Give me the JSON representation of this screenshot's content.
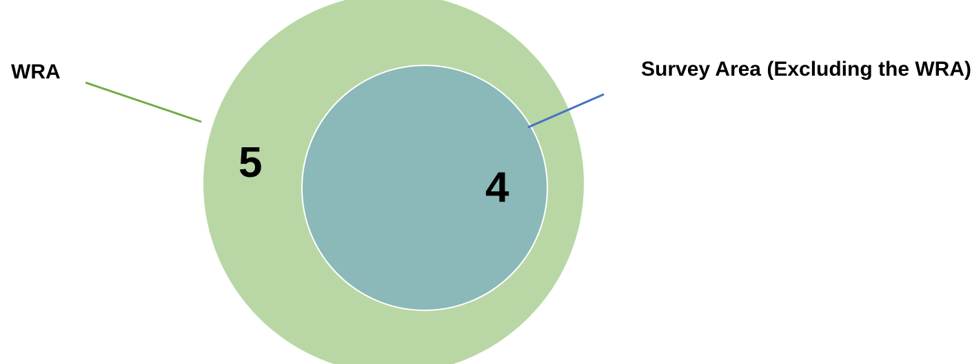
{
  "diagram": {
    "outer": {
      "label": "WRA",
      "count": "5",
      "fill_color": "#b9d7a5",
      "leader_color": "#70ad47"
    },
    "inner": {
      "label": "Survey Area (Excluding the WRA)",
      "count": "4",
      "fill_color": "#8bb8b9",
      "leader_color": "#4472c4"
    }
  }
}
